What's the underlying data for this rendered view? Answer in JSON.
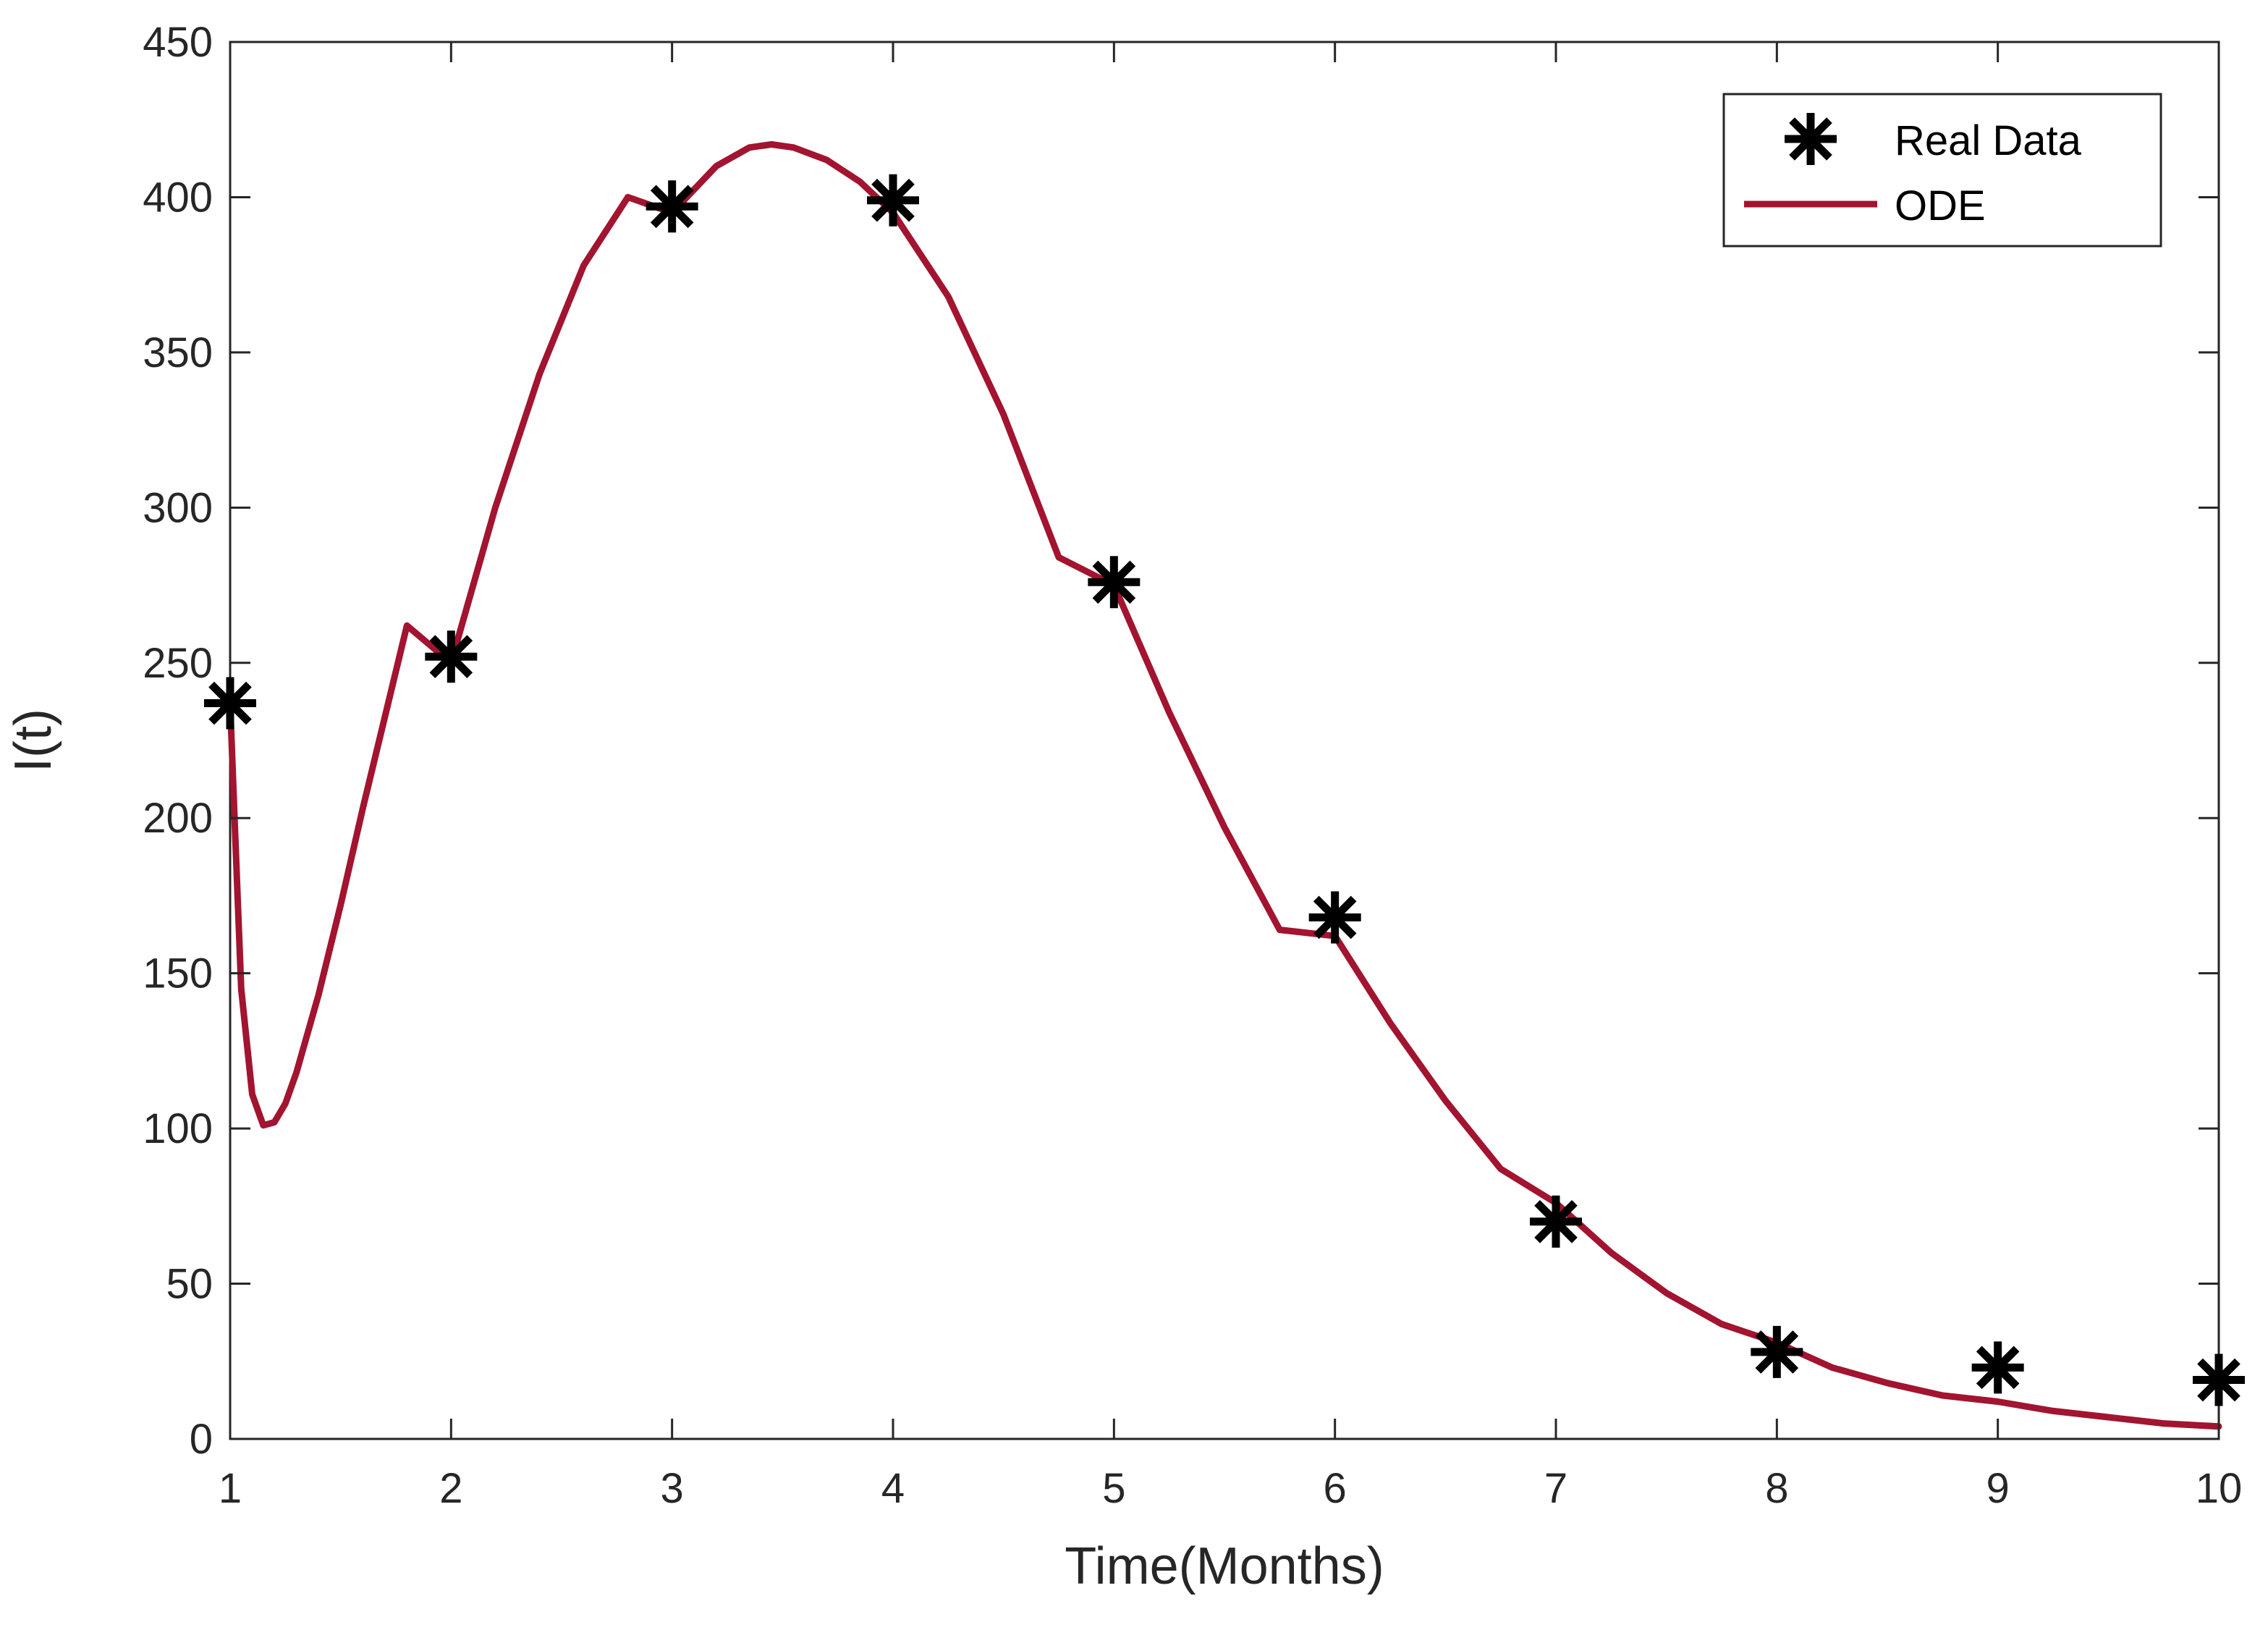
{
  "chart_data": {
    "type": "line",
    "xlabel": "Time(Months)",
    "ylabel": "I(t)",
    "xlim": [
      1,
      10
    ],
    "ylim": [
      0,
      450
    ],
    "xticks": [
      1,
      2,
      3,
      4,
      5,
      6,
      7,
      8,
      9,
      10
    ],
    "yticks": [
      0,
      50,
      100,
      150,
      200,
      250,
      300,
      350,
      400,
      450
    ],
    "grid": false,
    "legend_position": "top-right",
    "series": [
      {
        "name": "Real Data",
        "type": "scatter",
        "marker": "asterisk",
        "color": "#000000",
        "x": [
          1,
          2,
          3,
          4,
          5,
          6,
          7,
          8,
          9,
          10
        ],
        "y": [
          237,
          252,
          397,
          399,
          276,
          168,
          70,
          28,
          23,
          19
        ]
      },
      {
        "name": "ODE",
        "type": "line",
        "color": "#A2142F",
        "x": [
          1.0,
          1.02,
          1.05,
          1.1,
          1.15,
          1.2,
          1.25,
          1.3,
          1.4,
          1.5,
          1.6,
          1.8,
          2.0,
          2.2,
          2.4,
          2.6,
          2.8,
          3.0,
          3.2,
          3.35,
          3.45,
          3.55,
          3.7,
          3.85,
          4.0,
          4.25,
          4.5,
          4.75,
          5.0,
          5.25,
          5.5,
          5.75,
          6.0,
          6.25,
          6.5,
          6.75,
          7.0,
          7.25,
          7.5,
          7.75,
          8.0,
          8.25,
          8.5,
          8.75,
          9.0,
          9.25,
          9.5,
          9.75,
          10.0
        ],
        "y": [
          237,
          200,
          145,
          111,
          101,
          102,
          108,
          118,
          143,
          172,
          203,
          262,
          250,
          300,
          343,
          378,
          400,
          395,
          410,
          416,
          417,
          416,
          412,
          405,
          395,
          368,
          330,
          284,
          275,
          234,
          197,
          164,
          162,
          134,
          109,
          87,
          76,
          60,
          47,
          37,
          31,
          23,
          18,
          14,
          12,
          9,
          7,
          5,
          4
        ]
      }
    ]
  }
}
